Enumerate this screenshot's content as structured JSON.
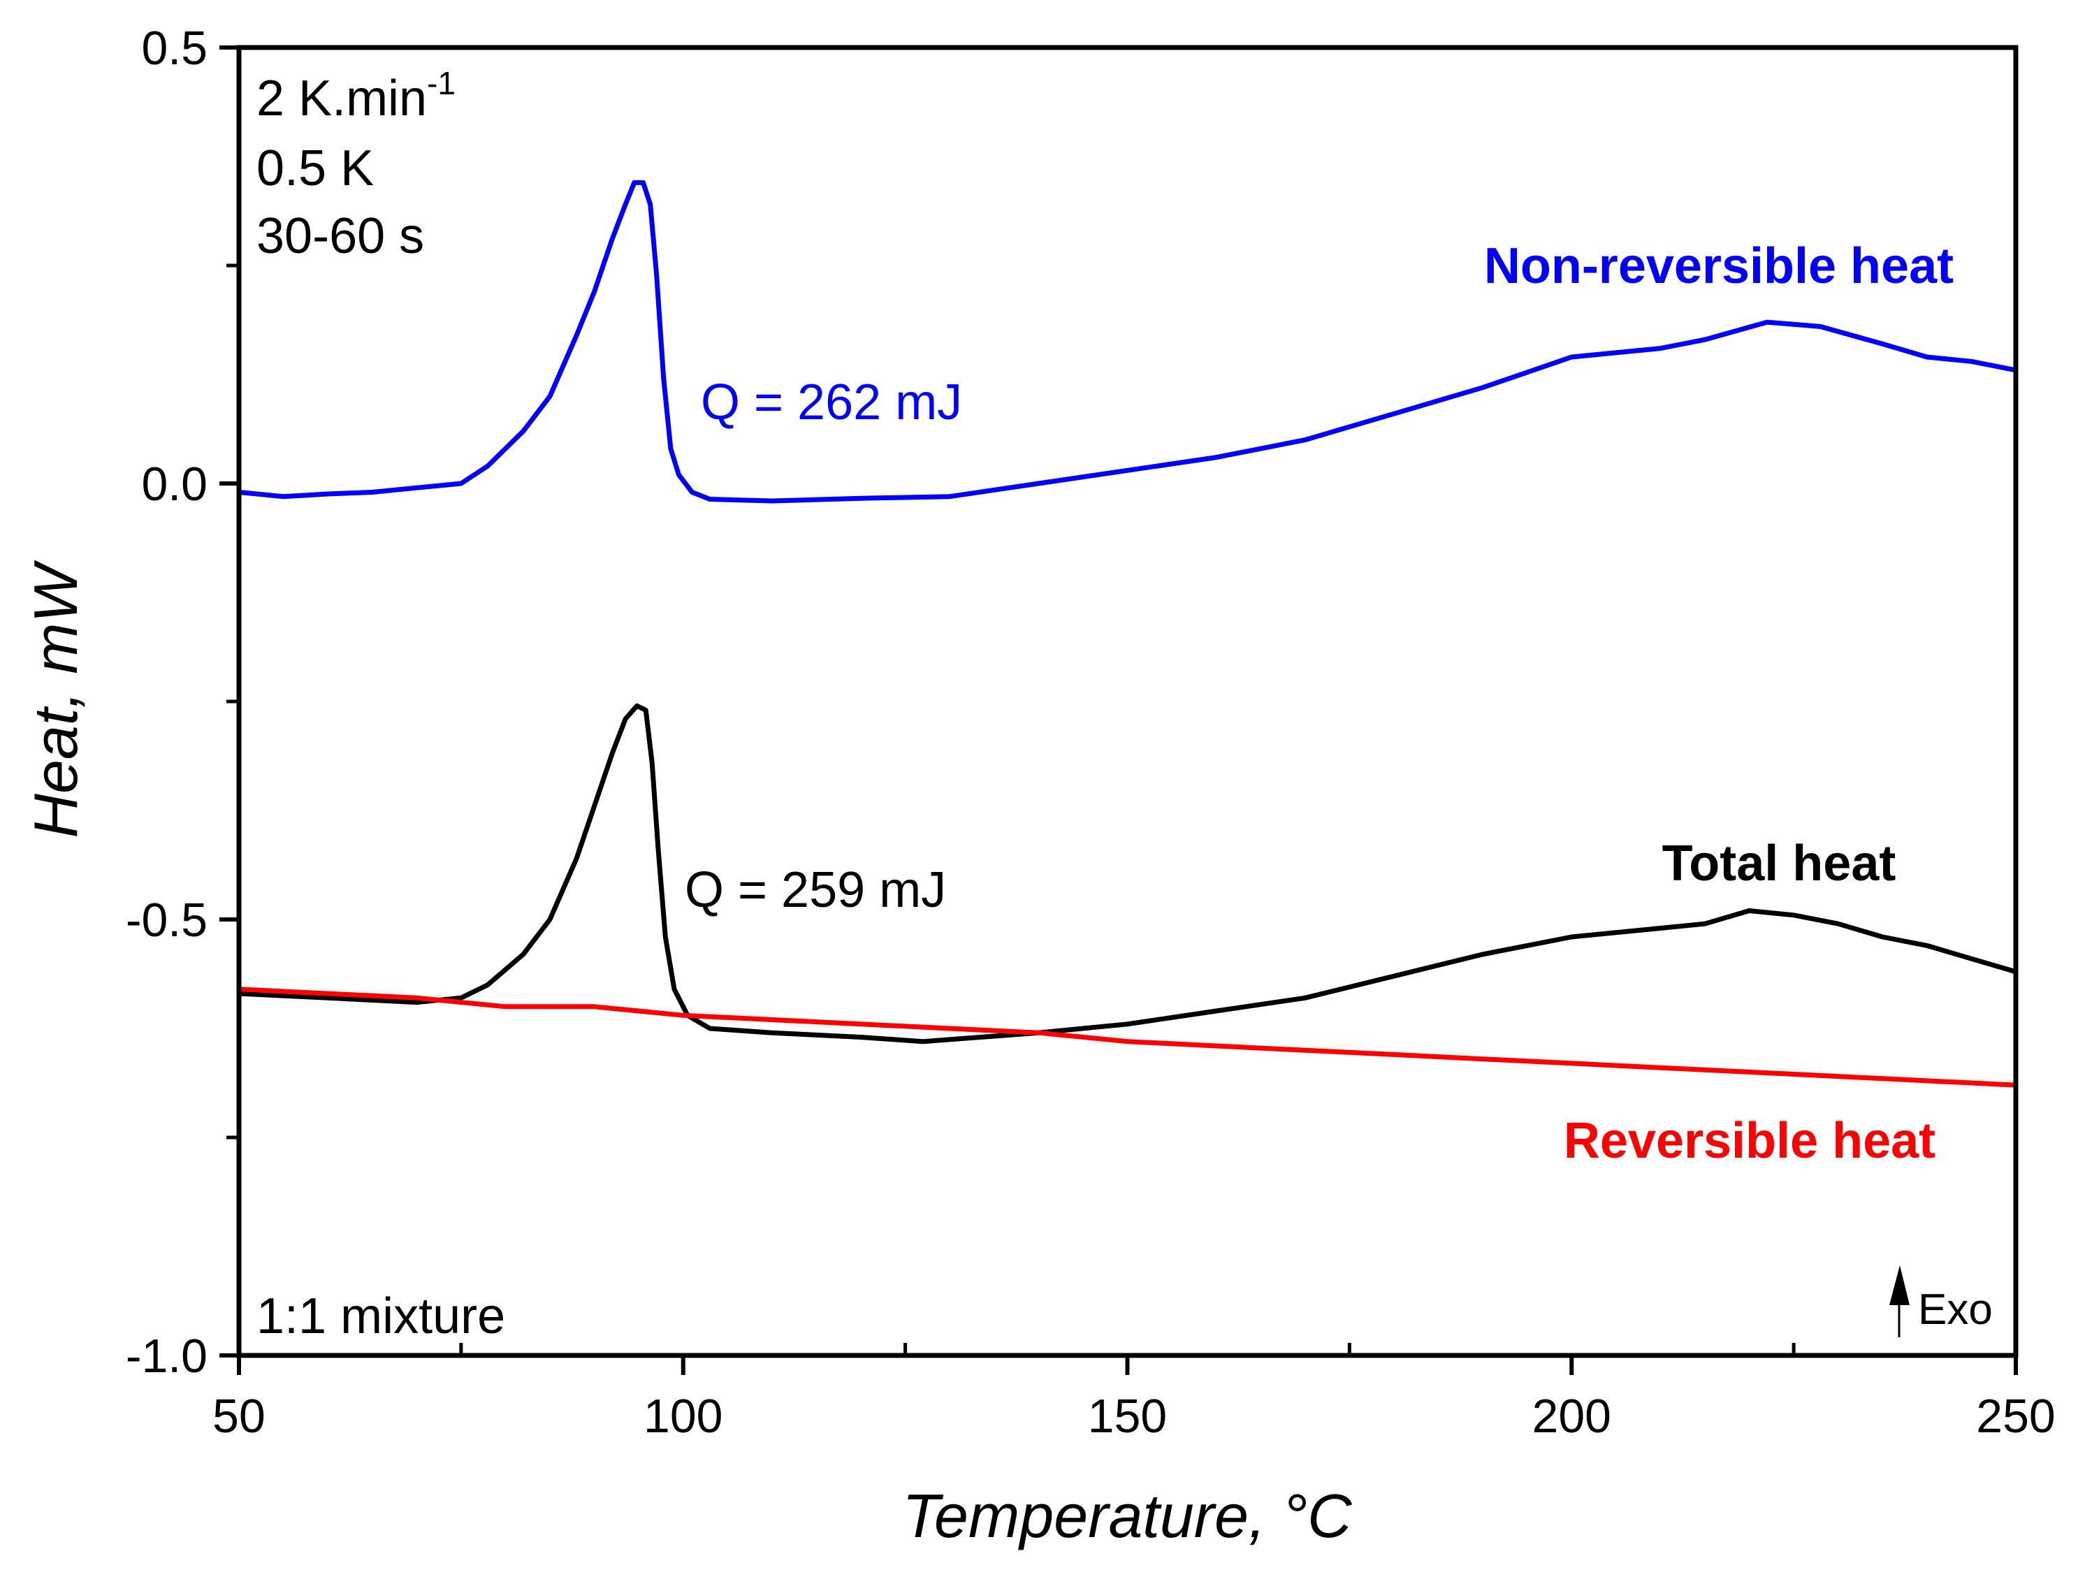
{
  "chart_data": {
    "type": "line",
    "xlabel": "Temperature, °C",
    "ylabel": "Heat, mW",
    "xlim": [
      50,
      250
    ],
    "ylim": [
      -1.0,
      0.5
    ],
    "xticks": [
      "50",
      "100",
      "150",
      "200",
      "250"
    ],
    "yticks": [
      "-1.0",
      "-0.5",
      "0.0",
      "0.5"
    ],
    "grid": false,
    "colors": {
      "non_reversible": "#0000ff",
      "total": "#000000",
      "reversible": "#ff0000"
    },
    "series": [
      {
        "name": "Non-reversible heat",
        "color": "#0000ff",
        "x": [
          50,
          55,
          60,
          65,
          70,
          75,
          78,
          82,
          85,
          88,
          90,
          92,
          93.5,
          94.5,
          95.5,
          96.3,
          97,
          97.8,
          98.6,
          99.5,
          101,
          103,
          110,
          120,
          130,
          140,
          150,
          160,
          170,
          180,
          190,
          200,
          210,
          215,
          222,
          228,
          235,
          240,
          245,
          250
        ],
        "y": [
          -0.01,
          -0.015,
          -0.012,
          -0.01,
          -0.005,
          0.0,
          0.02,
          0.06,
          0.1,
          0.17,
          0.22,
          0.28,
          0.32,
          0.345,
          0.345,
          0.32,
          0.24,
          0.12,
          0.04,
          0.01,
          -0.01,
          -0.018,
          -0.02,
          -0.017,
          -0.015,
          0.0,
          0.015,
          0.03,
          0.05,
          0.08,
          0.11,
          0.145,
          0.155,
          0.165,
          0.185,
          0.18,
          0.16,
          0.145,
          0.14,
          0.13
        ]
      },
      {
        "name": "Total heat",
        "color": "#000000",
        "x": [
          50,
          60,
          70,
          75,
          78,
          82,
          85,
          88,
          90,
          92,
          93.5,
          94.8,
          95.8,
          96.5,
          97.2,
          98,
          99,
          100.5,
          103,
          110,
          120,
          127,
          140,
          150,
          160,
          170,
          180,
          190,
          200,
          210,
          215,
          220,
          225,
          230,
          235,
          240,
          245,
          250
        ],
        "y": [
          -0.585,
          -0.59,
          -0.595,
          -0.59,
          -0.575,
          -0.54,
          -0.5,
          -0.43,
          -0.37,
          -0.31,
          -0.27,
          -0.255,
          -0.26,
          -0.32,
          -0.42,
          -0.52,
          -0.58,
          -0.61,
          -0.625,
          -0.63,
          -0.635,
          -0.64,
          -0.63,
          -0.62,
          -0.605,
          -0.59,
          -0.565,
          -0.54,
          -0.52,
          -0.51,
          -0.505,
          -0.49,
          -0.495,
          -0.505,
          -0.52,
          -0.53,
          -0.545,
          -0.56
        ]
      },
      {
        "name": "Reversible heat",
        "color": "#ff0000",
        "x": [
          50,
          60,
          70,
          80,
          90,
          100,
          110,
          120,
          130,
          140,
          150,
          160,
          170,
          180,
          190,
          200,
          210,
          220,
          230,
          240,
          250
        ],
        "y": [
          -0.58,
          -0.585,
          -0.59,
          -0.6,
          -0.6,
          -0.61,
          -0.615,
          -0.62,
          -0.625,
          -0.63,
          -0.64,
          -0.645,
          -0.65,
          -0.655,
          -0.66,
          -0.665,
          -0.67,
          -0.675,
          -0.68,
          -0.685,
          -0.69
        ]
      }
    ],
    "annotations": {
      "rate": "2 K.min",
      "rate_exp": "-1",
      "amplitude": "0.5 K",
      "period": "30-60 s",
      "sample": "1:1 mixture",
      "q_nonrev": "Q = 262 mJ",
      "q_total": "Q = 259 mJ",
      "exo": "Exo"
    }
  }
}
